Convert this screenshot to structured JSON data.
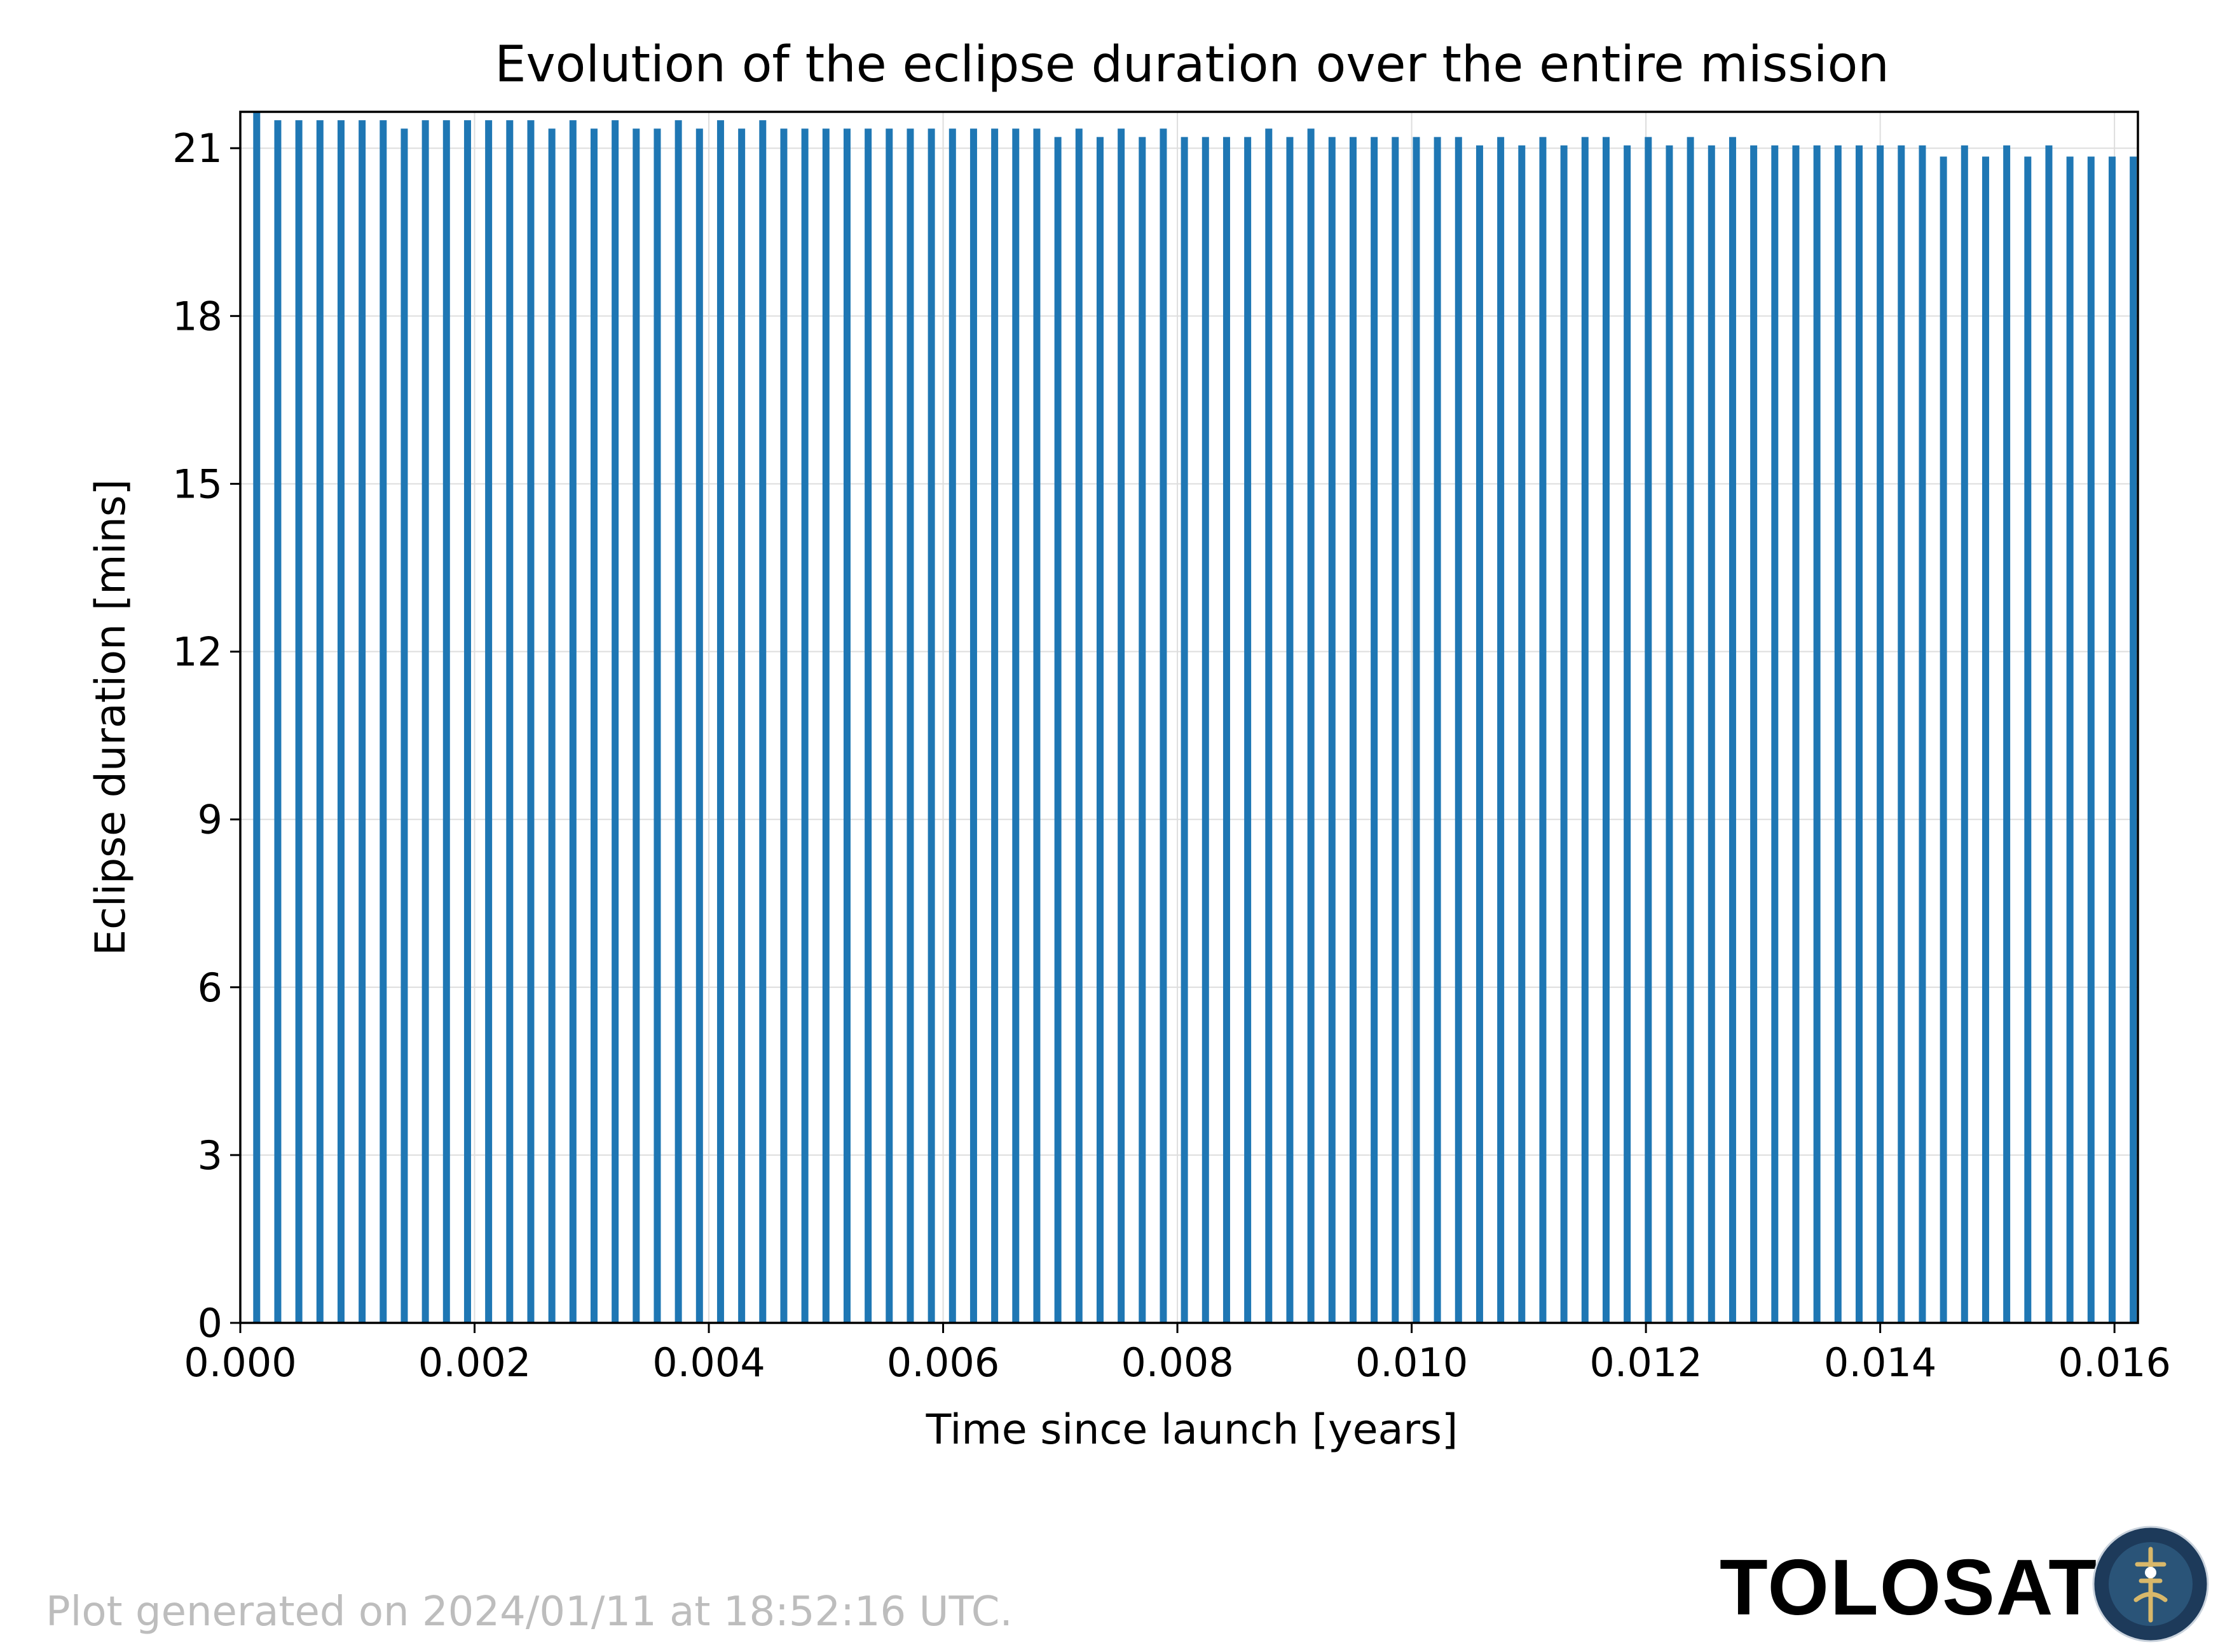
{
  "chart_data": {
    "type": "bar",
    "title": "Evolution of the eclipse duration over the entire mission",
    "xlabel": "Time since launch [years]",
    "ylabel": "Eclipse duration [mins]",
    "xlim": [
      0,
      0.0162
    ],
    "ylim": [
      0,
      21.65
    ],
    "xticks": [
      "0.000",
      "0.002",
      "0.004",
      "0.006",
      "0.008",
      "0.010",
      "0.012",
      "0.014",
      "0.016"
    ],
    "yticks": [
      "0",
      "3",
      "6",
      "9",
      "12",
      "15",
      "18",
      "21"
    ],
    "grid": true,
    "color": "#1f77b4",
    "x": [
      0.00014,
      0.00032,
      0.0005,
      0.00068,
      0.00086,
      0.00104,
      0.00122,
      0.0014,
      0.00158,
      0.00176,
      0.00194,
      0.00212,
      0.0023,
      0.00248,
      0.00266,
      0.00284,
      0.00302,
      0.0032,
      0.00338,
      0.00356,
      0.00374,
      0.00392,
      0.0041,
      0.00428,
      0.00446,
      0.00464,
      0.00482,
      0.005,
      0.00518,
      0.00536,
      0.00554,
      0.00572,
      0.0059,
      0.00608,
      0.00626,
      0.00644,
      0.00662,
      0.0068,
      0.00698,
      0.00716,
      0.00734,
      0.00752,
      0.0077,
      0.00788,
      0.00806,
      0.00824,
      0.00842,
      0.0086,
      0.00878,
      0.00896,
      0.00914,
      0.00932,
      0.0095,
      0.00968,
      0.00986,
      0.01004,
      0.01022,
      0.0104,
      0.01058,
      0.01076,
      0.01094,
      0.01112,
      0.0113,
      0.01148,
      0.01166,
      0.01184,
      0.01202,
      0.0122,
      0.01238,
      0.01256,
      0.01274,
      0.01292,
      0.0131,
      0.01328,
      0.01346,
      0.01364,
      0.01382,
      0.014,
      0.01418,
      0.01436,
      0.01454,
      0.01472,
      0.0149,
      0.01508,
      0.01526,
      0.01544,
      0.01562,
      0.0158,
      0.01598,
      0.01616
    ],
    "values": [
      21.65,
      21.5,
      21.5,
      21.5,
      21.5,
      21.5,
      21.5,
      21.35,
      21.5,
      21.5,
      21.5,
      21.5,
      21.5,
      21.5,
      21.35,
      21.5,
      21.35,
      21.5,
      21.35,
      21.35,
      21.5,
      21.35,
      21.5,
      21.35,
      21.5,
      21.35,
      21.35,
      21.35,
      21.35,
      21.35,
      21.35,
      21.35,
      21.35,
      21.35,
      21.35,
      21.35,
      21.35,
      21.35,
      21.2,
      21.35,
      21.2,
      21.35,
      21.2,
      21.35,
      21.2,
      21.2,
      21.2,
      21.2,
      21.35,
      21.2,
      21.35,
      21.2,
      21.2,
      21.2,
      21.2,
      21.2,
      21.2,
      21.2,
      21.05,
      21.2,
      21.05,
      21.2,
      21.05,
      21.2,
      21.2,
      21.05,
      21.2,
      21.05,
      21.2,
      21.05,
      21.2,
      21.05,
      21.05,
      21.05,
      21.05,
      21.05,
      21.05,
      21.05,
      21.05,
      21.05,
      20.85,
      21.05,
      20.85,
      21.05,
      20.85,
      21.05,
      20.85,
      20.85,
      20.85,
      20.85
    ]
  },
  "footer": {
    "generated_note": "Plot generated on 2024/01/11 at 18:52:16 UTC.",
    "brand": "TOLOSAT"
  },
  "logo": {
    "colors": {
      "ring": "#1d3a5a",
      "inner": "#2a5478",
      "accent": "#d8b86a"
    }
  }
}
